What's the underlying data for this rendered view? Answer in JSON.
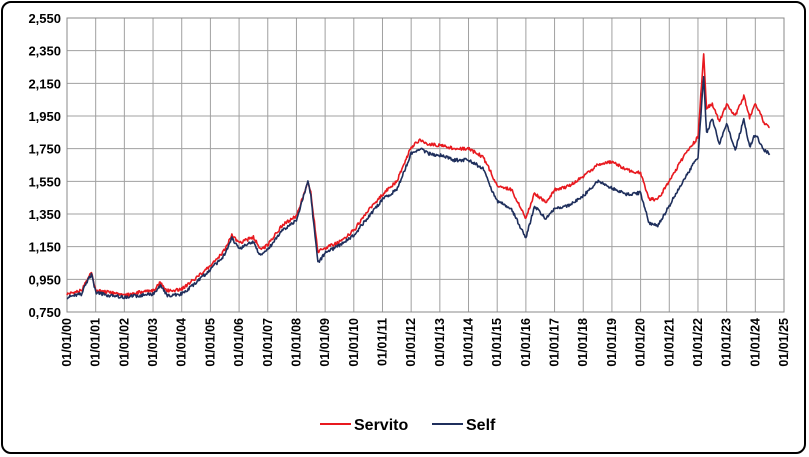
{
  "chart_data": {
    "type": "line",
    "title": "",
    "xlabel": "",
    "ylabel": "",
    "ylim": [
      0.75,
      2.55
    ],
    "yticks": [
      "0,750",
      "0,950",
      "1,150",
      "1,350",
      "1,550",
      "1,750",
      "1,950",
      "2,150",
      "2,350",
      "2,550"
    ],
    "xticks": [
      "01/01/00",
      "01/01/01",
      "01/01/02",
      "01/01/03",
      "01/01/04",
      "01/01/05",
      "01/01/06",
      "01/01/07",
      "01/01/08",
      "01/01/09",
      "01/01/10",
      "01/01/11",
      "01/01/12",
      "01/01/13",
      "01/01/14",
      "01/01/15",
      "01/01/16",
      "01/01/17",
      "01/01/18",
      "01/01/19",
      "01/01/20",
      "01/01/21",
      "01/01/22",
      "01/01/23",
      "01/01/24",
      "01/01/25"
    ],
    "grid": true,
    "legend": "bottom-center",
    "colors": {
      "Servito": "#e8191f",
      "Self": "#1f2f5c"
    },
    "x": [
      2000.0,
      2000.5,
      2000.75,
      2000.85,
      2001.0,
      2001.5,
      2002.0,
      2002.5,
      2003.0,
      2003.25,
      2003.5,
      2004.0,
      2004.5,
      2005.0,
      2005.5,
      2005.75,
      2006.0,
      2006.5,
      2006.75,
      2007.0,
      2007.5,
      2008.0,
      2008.4,
      2008.5,
      2008.75,
      2009.0,
      2009.5,
      2010.0,
      2010.5,
      2011.0,
      2011.5,
      2012.0,
      2012.3,
      2012.6,
      2013.0,
      2013.5,
      2014.0,
      2014.5,
      2014.8,
      2015.0,
      2015.5,
      2016.0,
      2016.3,
      2016.7,
      2017.0,
      2017.5,
      2018.0,
      2018.5,
      2019.0,
      2019.5,
      2020.0,
      2020.3,
      2020.6,
      2021.0,
      2021.5,
      2022.0,
      2022.2,
      2022.3,
      2022.5,
      2022.75,
      2023.0,
      2023.3,
      2023.6,
      2023.8,
      2024.0,
      2024.3,
      2024.5
    ],
    "series": [
      {
        "name": "Servito",
        "values": [
          0.86,
          0.88,
          0.96,
          0.99,
          0.88,
          0.87,
          0.85,
          0.87,
          0.88,
          0.93,
          0.88,
          0.89,
          0.96,
          1.03,
          1.13,
          1.22,
          1.17,
          1.21,
          1.13,
          1.16,
          1.28,
          1.34,
          1.54,
          1.48,
          1.12,
          1.14,
          1.18,
          1.25,
          1.37,
          1.47,
          1.55,
          1.76,
          1.8,
          1.78,
          1.77,
          1.75,
          1.75,
          1.7,
          1.6,
          1.52,
          1.5,
          1.32,
          1.48,
          1.42,
          1.5,
          1.52,
          1.58,
          1.65,
          1.67,
          1.62,
          1.6,
          1.44,
          1.44,
          1.55,
          1.7,
          1.82,
          2.33,
          2.0,
          2.02,
          1.92,
          2.02,
          1.95,
          2.07,
          1.94,
          2.03,
          1.91,
          1.88
        ]
      },
      {
        "name": "Self",
        "values": [
          0.84,
          0.86,
          0.95,
          0.98,
          0.87,
          0.85,
          0.84,
          0.85,
          0.86,
          0.91,
          0.85,
          0.86,
          0.93,
          1.01,
          1.1,
          1.2,
          1.14,
          1.18,
          1.09,
          1.13,
          1.25,
          1.31,
          1.55,
          1.46,
          1.05,
          1.11,
          1.16,
          1.22,
          1.33,
          1.44,
          1.5,
          1.72,
          1.75,
          1.72,
          1.71,
          1.68,
          1.68,
          1.63,
          1.5,
          1.43,
          1.38,
          1.2,
          1.4,
          1.32,
          1.38,
          1.4,
          1.46,
          1.55,
          1.51,
          1.47,
          1.48,
          1.29,
          1.28,
          1.4,
          1.56,
          1.7,
          2.2,
          1.85,
          1.93,
          1.78,
          1.9,
          1.74,
          1.93,
          1.76,
          1.84,
          1.74,
          1.72
        ]
      }
    ]
  }
}
